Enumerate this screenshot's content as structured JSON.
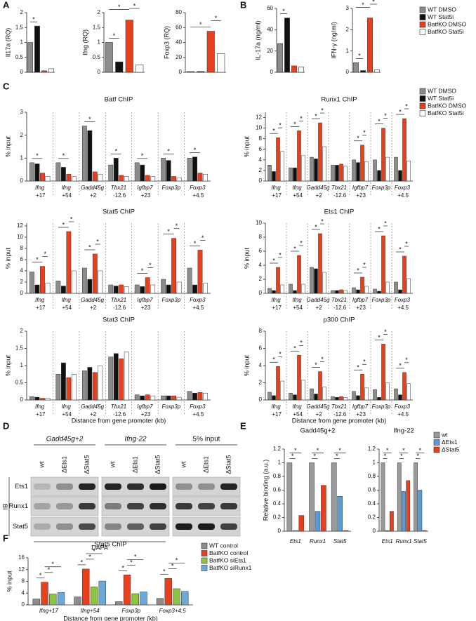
{
  "panel_labels": [
    "A",
    "B",
    "C",
    "D",
    "E",
    "F"
  ],
  "chart_data": [
    {
      "type": "bar",
      "ylabel": "Il17a (RQ)",
      "values": [
        1.0,
        1.55,
        0.05,
        0.12
      ],
      "colors": [
        "#8c8c8c",
        "#111111",
        "#e8401c",
        "#ffffff"
      ],
      "ylim": [
        0,
        2
      ],
      "yticks": [
        0,
        0.5,
        1,
        1.5,
        2
      ],
      "sig_label": "*",
      "comparisons": [
        [
          0,
          1
        ]
      ]
    },
    {
      "type": "bar",
      "ylabel": "Ifng (RQ)",
      "values": [
        1.0,
        0.35,
        1.75,
        0.25
      ],
      "colors": [
        "#8c8c8c",
        "#111111",
        "#e8401c",
        "#ffffff"
      ],
      "ylim": [
        0,
        2
      ],
      "yticks": [
        0,
        0.5,
        1,
        1.5,
        2
      ],
      "sig_label": "*",
      "comparisons": [
        [
          0,
          1
        ],
        [
          0,
          2
        ],
        [
          2,
          3
        ]
      ]
    },
    {
      "type": "bar",
      "ylabel": "Foxp3 (RQ)",
      "values": [
        1,
        1,
        55,
        25
      ],
      "colors": [
        "#8c8c8c",
        "#111111",
        "#e8401c",
        "#ffffff"
      ],
      "ylim": [
        0,
        80
      ],
      "yticks": [
        0,
        20,
        40,
        60,
        80
      ],
      "sig_label": "*",
      "comparisons": [
        [
          0,
          2
        ],
        [
          2,
          3
        ]
      ]
    },
    {
      "type": "bar",
      "ylabel": "IL-17a (ng/ml)",
      "values": [
        27,
        51,
        6,
        5
      ],
      "colors": [
        "#8c8c8c",
        "#111111",
        "#e8401c",
        "#ffffff"
      ],
      "ylim": [
        0,
        60
      ],
      "yticks": [
        0,
        20,
        40,
        60
      ],
      "sig_label": "*",
      "comparisons": [
        [
          0,
          1
        ]
      ]
    },
    {
      "type": "bar",
      "ylabel": "IFN-γ (ng/ml)",
      "values": [
        0.45,
        0.08,
        2.55,
        0.12
      ],
      "colors": [
        "#8c8c8c",
        "#111111",
        "#e8401c",
        "#ffffff"
      ],
      "ylim": [
        0,
        3
      ],
      "yticks": [
        0,
        1,
        2,
        3
      ],
      "sig_label": "*",
      "comparisons": [
        [
          0,
          1
        ],
        [
          0,
          2
        ],
        [
          2,
          3
        ]
      ],
      "legend": [
        "WT DMSO",
        "WT Stat5i",
        "BatfKO DMSO",
        "BatfKO Stat5i"
      ]
    },
    {
      "type": "grouped_bar",
      "title": "Batf ChIP",
      "ylabel": "% input",
      "separators": true,
      "categories": [
        "Ifng +17",
        "Ifng +54",
        "Gadd45g +2",
        "Tbx21 -12.6",
        "Igfbp7 +23",
        "Foxp3p",
        "Foxp3 +4.5"
      ],
      "series": [
        {
          "color": "#8c8c8c",
          "values": [
            0.8,
            0.8,
            2.4,
            0.7,
            0.8,
            1.0,
            1.0
          ]
        },
        {
          "color": "#111111",
          "values": [
            0.75,
            0.6,
            2.2,
            1.0,
            0.7,
            0.9,
            1.05
          ]
        },
        {
          "color": "#e8401c",
          "values": [
            0.35,
            0.3,
            0.4,
            0.25,
            0.25,
            0.2,
            0.35
          ]
        },
        {
          "color": "#ffffff",
          "values": [
            0.2,
            0.2,
            0.3,
            0.2,
            0.2,
            0.15,
            0.3
          ]
        }
      ],
      "ylim": [
        0,
        3
      ],
      "yticks": [
        0,
        1,
        2,
        3
      ],
      "sig_label": "*",
      "comparisons": [
        [
          0,
          0,
          2
        ],
        [
          1,
          0,
          2
        ],
        [
          2,
          0,
          2
        ],
        [
          3,
          0,
          2
        ],
        [
          4,
          0,
          2
        ],
        [
          5,
          0,
          2
        ],
        [
          6,
          0,
          2
        ]
      ]
    },
    {
      "type": "grouped_bar",
      "title": "Runx1 ChIP",
      "ylabel": "% input",
      "separators": true,
      "legend": true,
      "categories": [
        "Ifng +17",
        "Ifng +54",
        "Gadd45g +2",
        "Tbx21 -12.6",
        "Igfbp7 +23",
        "Foxp3p",
        "Foxp3 +4.5"
      ],
      "series": [
        {
          "name": "WT DMSO",
          "color": "#8c8c8c",
          "values": [
            3,
            2.5,
            4.5,
            3,
            4,
            4,
            4.5
          ]
        },
        {
          "name": "WT Stat5i",
          "color": "#111111",
          "values": [
            1.8,
            2.5,
            4.2,
            3,
            3.5,
            2,
            2
          ]
        },
        {
          "name": "BatfKO DMSO",
          "color": "#e8401c",
          "values": [
            8.2,
            9.5,
            11,
            3.2,
            6.8,
            10,
            11.8
          ]
        },
        {
          "name": "BatfKO Stat5i",
          "color": "#ffffff",
          "values": [
            5.6,
            4.8,
            6.5,
            2.8,
            3.7,
            4.5,
            3.8
          ]
        }
      ],
      "ylim": [
        0,
        13
      ],
      "yticks": [
        0,
        2,
        4,
        6,
        8,
        10,
        12
      ],
      "sig_label": "*",
      "comparisons": [
        [
          0,
          0,
          2
        ],
        [
          0,
          2,
          3
        ],
        [
          1,
          0,
          2
        ],
        [
          1,
          2,
          3
        ],
        [
          2,
          0,
          2
        ],
        [
          2,
          2,
          3
        ],
        [
          4,
          0,
          2
        ],
        [
          4,
          2,
          3
        ],
        [
          5,
          0,
          2
        ],
        [
          5,
          2,
          3
        ],
        [
          6,
          0,
          2
        ],
        [
          6,
          2,
          3
        ]
      ]
    },
    {
      "type": "grouped_bar",
      "title": "Stat5 ChIP",
      "ylabel": "% input",
      "separators": true,
      "categories": [
        "Ifng +17",
        "Ifng +54",
        "Gadd45g +2",
        "Tbx21 -12.6",
        "Igfbp7 +23",
        "Foxp3p",
        "Foxp3 +4.5"
      ],
      "series": [
        {
          "color": "#8c8c8c",
          "values": [
            3.8,
            2.2,
            4.5,
            1.5,
            1.5,
            2.5,
            4.5
          ]
        },
        {
          "color": "#111111",
          "values": [
            1.5,
            1.3,
            2.5,
            1.3,
            1.2,
            1.5,
            1.5
          ]
        },
        {
          "color": "#e8401c",
          "values": [
            4.8,
            11,
            7,
            1.5,
            2.8,
            9.8,
            7.7
          ]
        },
        {
          "color": "#ffffff",
          "values": [
            1.8,
            4,
            4,
            1.2,
            1.5,
            2,
            1.8
          ]
        }
      ],
      "ylim": [
        0,
        12.5
      ],
      "yticks": [
        0,
        2,
        4,
        6,
        8,
        10,
        12
      ],
      "sig_label": "*",
      "comparisons": [
        [
          0,
          0,
          2
        ],
        [
          0,
          2,
          3
        ],
        [
          1,
          0,
          2
        ],
        [
          1,
          2,
          3
        ],
        [
          2,
          0,
          2
        ],
        [
          2,
          2,
          3
        ],
        [
          4,
          0,
          2
        ],
        [
          4,
          2,
          3
        ],
        [
          5,
          0,
          2
        ],
        [
          5,
          2,
          3
        ],
        [
          6,
          0,
          2
        ],
        [
          6,
          2,
          3
        ]
      ]
    },
    {
      "type": "grouped_bar",
      "title": "Ets1 ChIP",
      "ylabel": "% input",
      "separators": true,
      "categories": [
        "Ifng +17",
        "Ifng +54",
        "Gadd45g +2",
        "Tbx21 -12.6",
        "Igfbp7 +23",
        "Foxp3p",
        "Foxp3 +4.5"
      ],
      "series": [
        {
          "color": "#8c8c8c",
          "values": [
            0.7,
            1.3,
            3.7,
            0.4,
            0.8,
            0.6,
            1.6
          ]
        },
        {
          "color": "#111111",
          "values": [
            0.4,
            0.4,
            3.5,
            0.4,
            0.5,
            0.3,
            0.5
          ]
        },
        {
          "color": "#e8401c",
          "values": [
            3.7,
            5.4,
            8.5,
            0.5,
            2.3,
            8.2,
            5.3
          ]
        },
        {
          "color": "#ffffff",
          "values": [
            1.2,
            1.3,
            3,
            0.4,
            1,
            1.6,
            2.1
          ]
        }
      ],
      "ylim": [
        0,
        10
      ],
      "yticks": [
        0,
        2,
        4,
        6,
        8,
        10
      ],
      "sig_label": "*",
      "comparisons": [
        [
          0,
          0,
          2
        ],
        [
          0,
          2,
          3
        ],
        [
          1,
          0,
          2
        ],
        [
          1,
          2,
          3
        ],
        [
          2,
          0,
          2
        ],
        [
          2,
          2,
          3
        ],
        [
          4,
          0,
          2
        ],
        [
          4,
          2,
          3
        ],
        [
          5,
          0,
          2
        ],
        [
          5,
          2,
          3
        ],
        [
          6,
          0,
          2
        ],
        [
          6,
          2,
          3
        ]
      ]
    },
    {
      "type": "grouped_bar",
      "title": "Stat3 ChIP",
      "ylabel": "% input",
      "xlabel": "Distance from gene promoter (kb)",
      "separators": true,
      "categories": [
        "Ifng +17",
        "Ifng +54",
        "Gadd45g +2",
        "Tbx21 -12.6",
        "Igfbp7 +23",
        "Foxp3p",
        "Foxp3 +4.5"
      ],
      "series": [
        {
          "color": "#8c8c8c",
          "values": [
            0.1,
            0.75,
            0.85,
            1.25,
            0.15,
            0.12,
            0.25
          ]
        },
        {
          "color": "#111111",
          "values": [
            0.08,
            1.08,
            0.95,
            1.35,
            0.12,
            0.12,
            0.2
          ]
        },
        {
          "color": "#e8401c",
          "values": [
            0.05,
            0.65,
            0.8,
            1.2,
            0.15,
            0.12,
            0.22
          ]
        },
        {
          "color": "#ffffff",
          "values": [
            0.05,
            0.75,
            1.0,
            1.4,
            0.12,
            0.08,
            0.2
          ]
        }
      ],
      "ylim": [
        0,
        2
      ],
      "yticks": [
        0,
        0.5,
        1,
        1.5,
        2
      ]
    },
    {
      "type": "grouped_bar",
      "title": "p300 ChIP",
      "ylabel": "% input",
      "xlabel": "Distance from gene promoter (kb)",
      "separators": true,
      "categories": [
        "Ifng +17",
        "Ifng +54",
        "Gadd45g +2",
        "Tbx21 -12.6",
        "Igfbp7 +23",
        "Foxp3p",
        "Foxp3 +4.5"
      ],
      "series": [
        {
          "color": "#8c8c8c",
          "values": [
            0.9,
            0.8,
            1.3,
            0.4,
            1.0,
            1.2,
            1.3
          ]
        },
        {
          "color": "#111111",
          "values": [
            0.5,
            0.6,
            0.7,
            0.3,
            0.5,
            0.3,
            0.6
          ]
        },
        {
          "color": "#e8401c",
          "values": [
            3.9,
            5.2,
            3.3,
            0.4,
            3,
            6.5,
            3.2
          ]
        },
        {
          "color": "#ffffff",
          "values": [
            2.2,
            2.3,
            1.5,
            0.3,
            1.4,
            2,
            1.9
          ]
        }
      ],
      "ylim": [
        0,
        8
      ],
      "yticks": [
        0,
        2,
        4,
        6,
        8
      ],
      "sig_label": "*",
      "comparisons": [
        [
          0,
          0,
          2
        ],
        [
          0,
          2,
          3
        ],
        [
          1,
          0,
          2
        ],
        [
          1,
          2,
          3
        ],
        [
          2,
          0,
          2
        ],
        [
          2,
          2,
          3
        ],
        [
          4,
          0,
          2
        ],
        [
          4,
          2,
          3
        ],
        [
          5,
          0,
          2
        ],
        [
          5,
          2,
          3
        ],
        [
          6,
          0,
          2
        ],
        [
          6,
          2,
          3
        ]
      ]
    },
    {
      "type": "grouped_bar",
      "title": "Gadd45g+2",
      "ylabel": "Relative binding (a.u.)",
      "categories": [
        "Ets1",
        "Runx1",
        "Stat5"
      ],
      "series": [
        {
          "color": "#9a9a9a",
          "values": [
            1,
            1,
            1
          ]
        },
        {
          "color": "#5b9bd5",
          "values": [
            0.01,
            0.29,
            0.51
          ]
        },
        {
          "color": "#e8401c",
          "values": [
            0.23,
            0.67,
            0.01
          ]
        }
      ],
      "ylim": [
        0,
        1.2
      ],
      "yticks": [
        0,
        0.2,
        0.4,
        0.6,
        0.8,
        1,
        1.2
      ],
      "sig_label": "*",
      "comparisons": [
        [
          0,
          0,
          1
        ],
        [
          0,
          0,
          2
        ],
        [
          1,
          0,
          1
        ],
        [
          1,
          0,
          2
        ],
        [
          2,
          0,
          1
        ],
        [
          2,
          0,
          2
        ]
      ]
    },
    {
      "type": "grouped_bar",
      "title": "Ifng-22",
      "legend": true,
      "categories": [
        "Ets1",
        "Runx1",
        "Stat5"
      ],
      "series": [
        {
          "name": "wt",
          "color": "#9a9a9a",
          "values": [
            1,
            1,
            1
          ]
        },
        {
          "name": "ΔEts1",
          "color": "#5b9bd5",
          "values": [
            0.01,
            0.58,
            0.6
          ]
        },
        {
          "name": "ΔStat5",
          "color": "#e8401c",
          "values": [
            0.29,
            0.74,
            0.01
          ]
        }
      ],
      "ylim": [
        0,
        1.2
      ],
      "yticks": [
        0,
        0.2,
        0.4,
        0.6,
        0.8,
        1,
        1.2
      ],
      "sig_label": "*",
      "comparisons": [
        [
          0,
          0,
          1
        ],
        [
          0,
          0,
          2
        ],
        [
          1,
          0,
          1
        ],
        [
          1,
          0,
          2
        ],
        [
          2,
          0,
          1
        ],
        [
          2,
          0,
          2
        ]
      ]
    },
    {
      "type": "grouped_bar",
      "title": "Stat5 ChIP",
      "ylabel": "% input",
      "xlabel": "Distance from gene promoter (kb)",
      "legend": true,
      "categories": [
        "Ifng+17",
        "Ifng+54",
        "Foxp3p",
        "Foxp3+4.5"
      ],
      "series": [
        {
          "name": "WT control",
          "color": "#8c8c8c",
          "values": [
            2,
            2.7,
            1.1,
            2.2
          ]
        },
        {
          "name": "BatfKO control",
          "color": "#e8401c",
          "values": [
            7.7,
            12.2,
            10.2,
            9
          ]
        },
        {
          "name": "BatfKO siEts1",
          "color": "#8cc63f",
          "values": [
            3.7,
            6.1,
            3.8,
            5.5
          ]
        },
        {
          "name": "BatfKO siRunx1",
          "color": "#6aa9d8",
          "values": [
            4.2,
            8.1,
            4.4,
            4.6
          ]
        }
      ],
      "ylim": [
        0,
        16
      ],
      "yticks": [
        0,
        4,
        8,
        12,
        16
      ],
      "sig_label": "*",
      "comparisons": [
        [
          0,
          0,
          1
        ],
        [
          0,
          1,
          2
        ],
        [
          0,
          1,
          3
        ],
        [
          1,
          0,
          1
        ],
        [
          1,
          1,
          2
        ],
        [
          1,
          1,
          3
        ],
        [
          2,
          0,
          1
        ],
        [
          2,
          1,
          2
        ],
        [
          2,
          1,
          3
        ],
        [
          3,
          0,
          1
        ],
        [
          3,
          1,
          2
        ],
        [
          3,
          1,
          3
        ]
      ]
    }
  ],
  "blot": {
    "groups": [
      "Gadd45g+2",
      "Ifng-22",
      "5% input"
    ],
    "lanes": [
      "wt",
      "ΔEts1",
      "ΔStat5"
    ],
    "rows": [
      "Ets1",
      "Runx1",
      "Stat5"
    ],
    "ib_label": "IB",
    "dapa_label": "DAPA"
  }
}
